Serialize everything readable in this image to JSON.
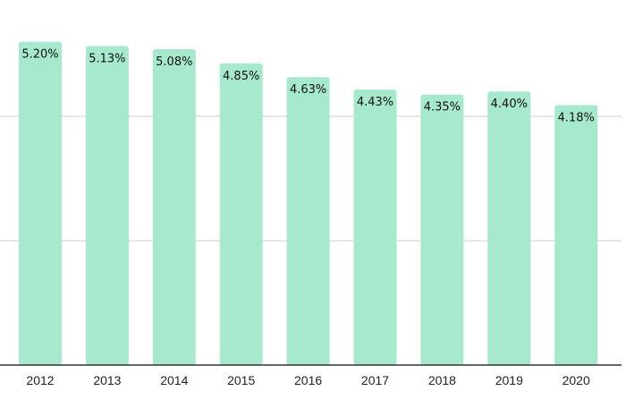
{
  "chart_data": {
    "type": "bar",
    "title": "",
    "xlabel": "",
    "ylabel": "",
    "categories": [
      "2012",
      "2013",
      "2014",
      "2015",
      "2016",
      "2017",
      "2018",
      "2019",
      "2020"
    ],
    "values": [
      5.2,
      5.13,
      5.08,
      4.85,
      4.63,
      4.43,
      4.35,
      4.4,
      4.18
    ],
    "data_labels": [
      "5.20%",
      "5.13%",
      "5.08%",
      "4.85%",
      "4.63%",
      "4.43%",
      "4.35%",
      "4.40%",
      "4.18%"
    ],
    "ylim": [
      0,
      5.5
    ],
    "gridlines_y": [
      2,
      4
    ],
    "grid": true,
    "legend": "none",
    "bar_color": "#a6e9cc",
    "grid_color": "#cccccc",
    "axis_color": "#333333"
  }
}
